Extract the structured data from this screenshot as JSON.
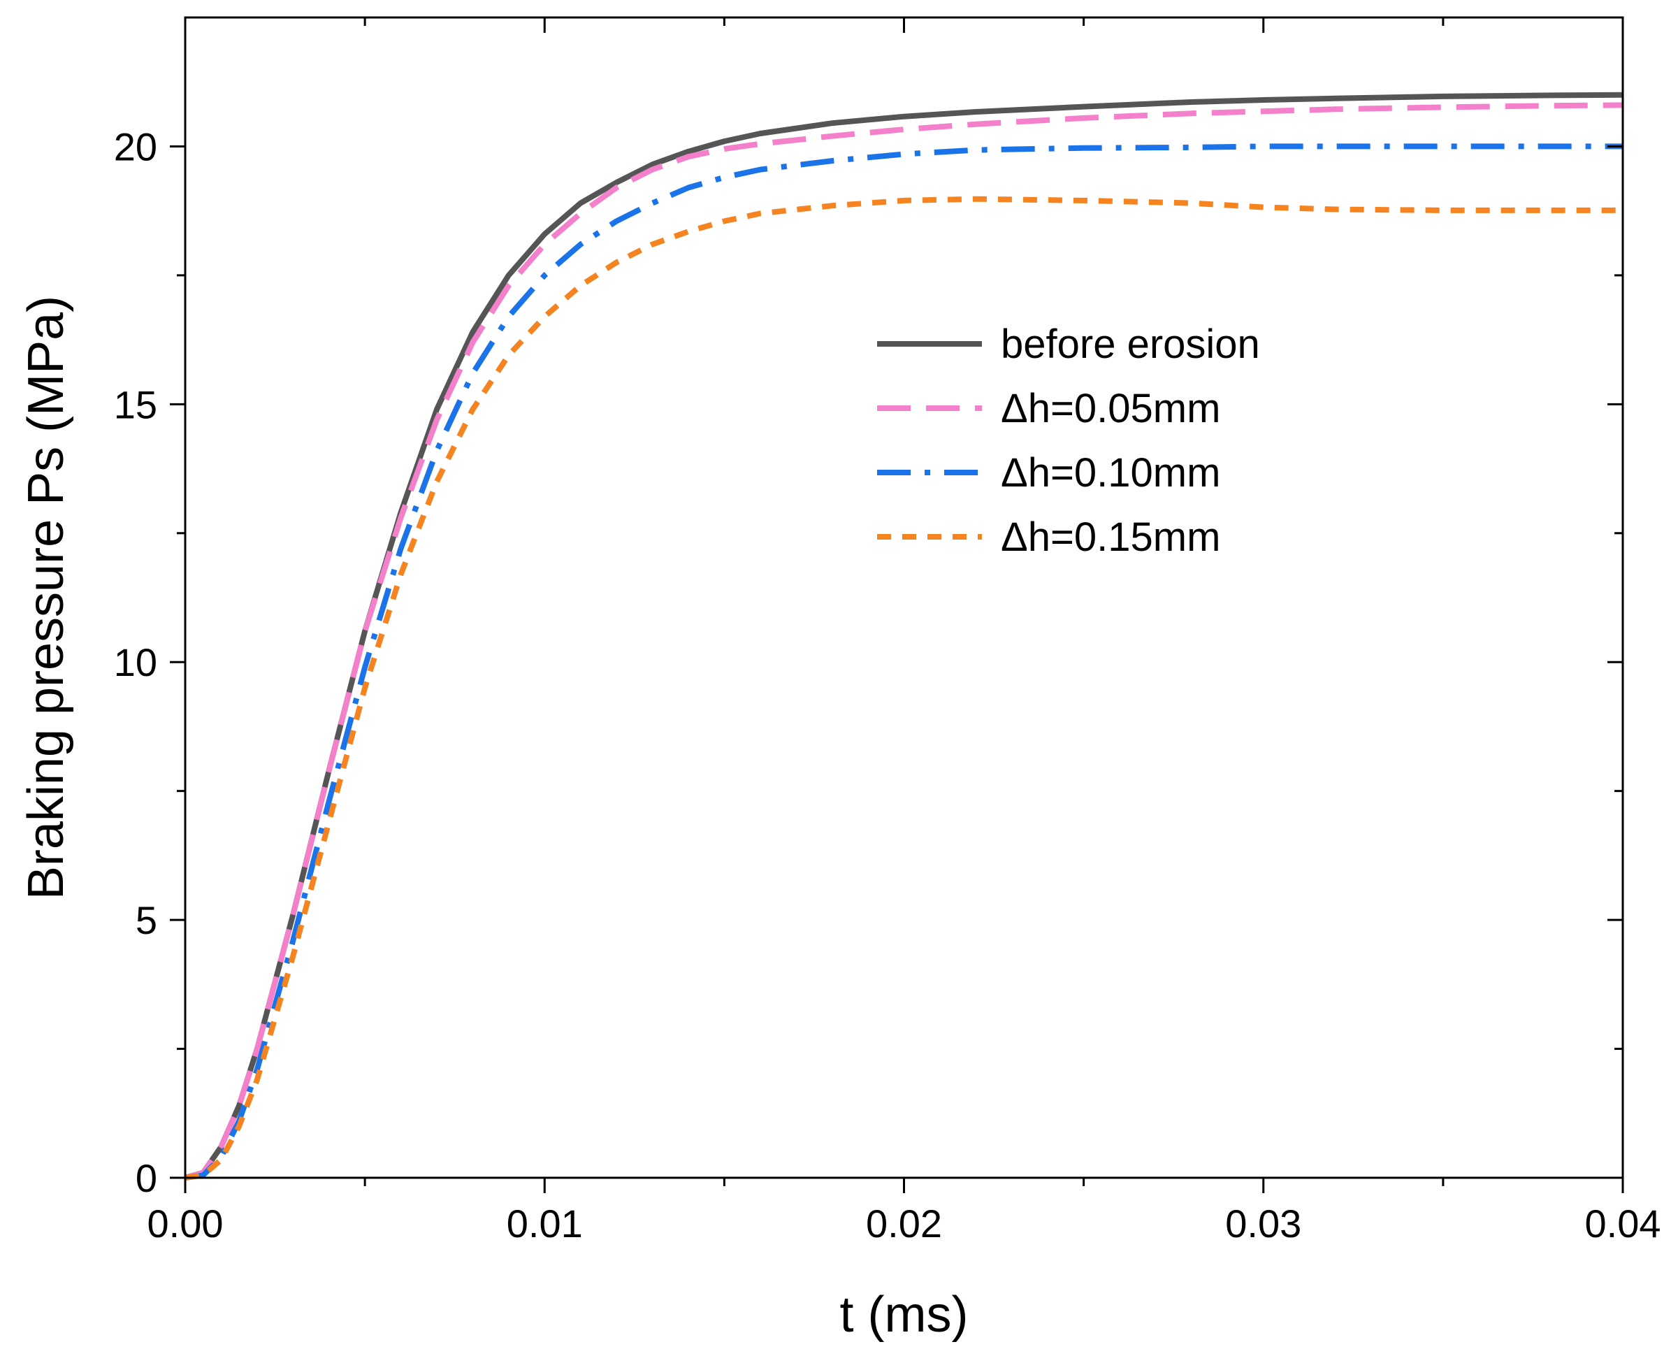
{
  "chart_data": {
    "type": "line",
    "title": "",
    "xlabel": "t (ms)",
    "ylabel": "Braking pressure Ps (MPa)",
    "xlim": [
      0,
      0.04
    ],
    "ylim": [
      0,
      22.5
    ],
    "xticks": [
      0.0,
      0.01,
      0.02,
      0.03,
      0.04
    ],
    "xtick_labels": [
      "0.00",
      "0.01",
      "0.02",
      "0.03",
      "0.04"
    ],
    "xminor_ticks": [
      0.005,
      0.015,
      0.025,
      0.035
    ],
    "yticks": [
      0,
      5,
      10,
      15,
      20
    ],
    "ytick_labels": [
      "0",
      "5",
      "10",
      "15",
      "20"
    ],
    "yminor_ticks": [
      2.5,
      7.5,
      12.5,
      17.5
    ],
    "grid": false,
    "legend_position": "center-right",
    "x": [
      0,
      0.0005,
      0.001,
      0.0015,
      0.002,
      0.003,
      0.004,
      0.005,
      0.006,
      0.007,
      0.008,
      0.009,
      0.01,
      0.011,
      0.012,
      0.013,
      0.014,
      0.015,
      0.016,
      0.018,
      0.02,
      0.022,
      0.025,
      0.028,
      0.03,
      0.032,
      0.035,
      0.038,
      0.04
    ],
    "series": [
      {
        "name": "before erosion",
        "color": "#555555",
        "dash": "solid",
        "values": [
          0,
          0.1,
          0.6,
          1.4,
          2.5,
          5.1,
          7.9,
          10.6,
          12.9,
          14.9,
          16.4,
          17.5,
          18.3,
          18.9,
          19.3,
          19.65,
          19.9,
          20.1,
          20.25,
          20.45,
          20.58,
          20.67,
          20.77,
          20.86,
          20.9,
          20.93,
          20.97,
          20.99,
          21.0
        ]
      },
      {
        "name": "Δh=0.05mm",
        "color": "#f47fca",
        "dash": "long-dash",
        "values": [
          0,
          0.1,
          0.6,
          1.4,
          2.5,
          5.1,
          7.9,
          10.6,
          12.8,
          14.7,
          16.2,
          17.3,
          18.1,
          18.7,
          19.2,
          19.55,
          19.8,
          19.95,
          20.05,
          20.2,
          20.33,
          20.43,
          20.55,
          20.64,
          20.68,
          20.72,
          20.76,
          20.79,
          20.8
        ]
      },
      {
        "name": "Δh=0.10mm",
        "color": "#1a73e8",
        "dash": "dash-dot",
        "values": [
          0,
          0.05,
          0.4,
          1.1,
          2.1,
          4.6,
          7.3,
          9.9,
          12.2,
          14.1,
          15.6,
          16.7,
          17.5,
          18.1,
          18.55,
          18.9,
          19.2,
          19.4,
          19.55,
          19.72,
          19.85,
          19.93,
          19.97,
          19.98,
          20.0,
          20.0,
          20.0,
          20.0,
          20.0
        ]
      },
      {
        "name": "Δh=0.15mm",
        "color": "#f5831f",
        "dash": "short-dash",
        "values": [
          0,
          0.05,
          0.35,
          1.0,
          1.9,
          4.3,
          6.9,
          9.5,
          11.7,
          13.5,
          14.9,
          15.95,
          16.7,
          17.3,
          17.75,
          18.1,
          18.35,
          18.55,
          18.7,
          18.85,
          18.95,
          18.98,
          18.95,
          18.9,
          18.82,
          18.78,
          18.76,
          18.76,
          18.76
        ]
      }
    ]
  }
}
